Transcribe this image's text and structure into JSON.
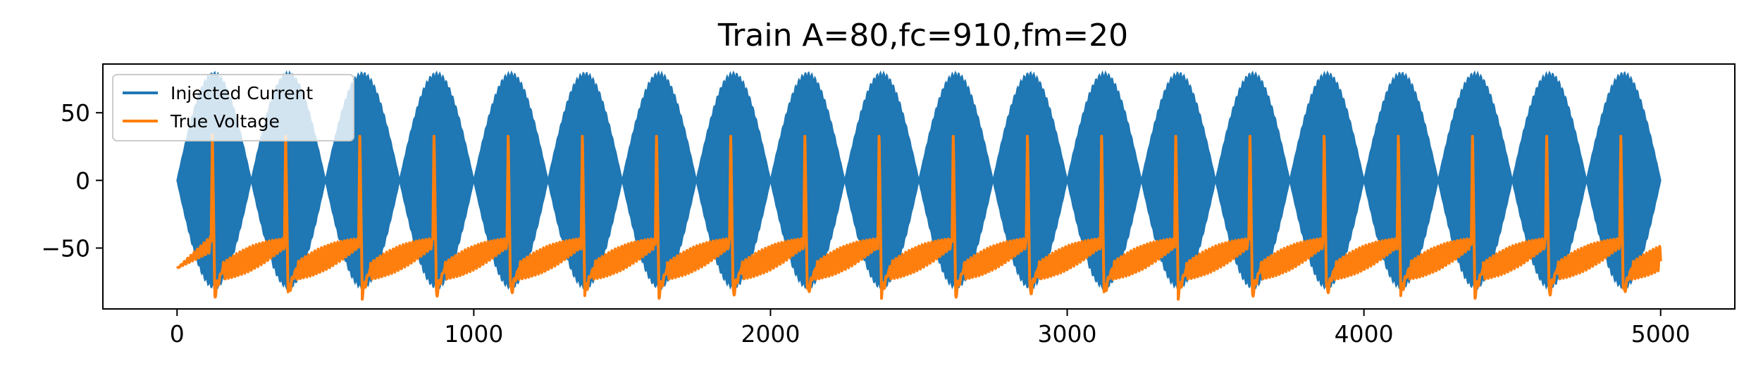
{
  "chart_data": {
    "type": "line",
    "title": "Train A=80,fc=910,fm=20",
    "xlabel": "",
    "ylabel": "",
    "xlim": [
      -250,
      5250
    ],
    "ylim": [
      -95,
      86
    ],
    "x_ticks": [
      0,
      1000,
      2000,
      3000,
      4000,
      5000
    ],
    "x_tick_labels": [
      "0",
      "1000",
      "2000",
      "3000",
      "4000",
      "5000"
    ],
    "y_ticks": [
      -50,
      0,
      50
    ],
    "y_tick_labels": [
      "−50",
      "0",
      "50"
    ],
    "grid": false,
    "legend_position": "upper-left",
    "series": [
      {
        "name": "Injected Current",
        "color": "#1f77b4",
        "kind": "amplitude-modulated sinusoid",
        "x_range": [
          0,
          5000
        ],
        "amplitude": 80,
        "carrier_frequency": 910,
        "modulation_frequency": 20,
        "lobe_count": 20
      },
      {
        "name": "True Voltage",
        "color": "#ff7f0e",
        "kind": "spike train",
        "x_range": [
          0,
          5000
        ],
        "resting_level": -65,
        "spike_times": [
          115,
          362,
          612,
          862,
          1112,
          1362,
          1612,
          1862,
          2112,
          2362,
          2612,
          2862,
          3112,
          3362,
          3612,
          3862,
          4112,
          4362,
          4612,
          4862
        ],
        "spike_peak": 36,
        "trough_level": -83
      }
    ]
  }
}
